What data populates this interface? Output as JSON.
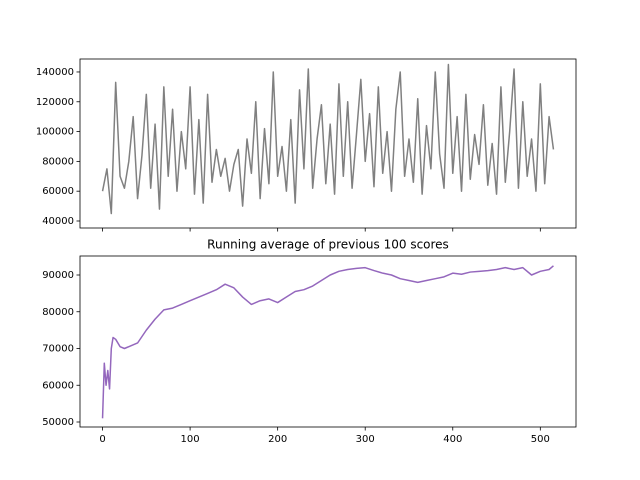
{
  "chart_data": [
    {
      "type": "line",
      "x": [
        0,
        5,
        10,
        15,
        20,
        25,
        30,
        35,
        40,
        45,
        50,
        55,
        60,
        65,
        70,
        75,
        80,
        85,
        90,
        95,
        100,
        105,
        110,
        115,
        120,
        125,
        130,
        135,
        140,
        145,
        150,
        155,
        160,
        165,
        170,
        175,
        180,
        185,
        190,
        195,
        200,
        205,
        210,
        215,
        220,
        225,
        230,
        235,
        240,
        245,
        250,
        255,
        260,
        265,
        270,
        275,
        280,
        285,
        290,
        295,
        300,
        305,
        310,
        315,
        320,
        325,
        330,
        335,
        340,
        345,
        350,
        355,
        360,
        365,
        370,
        375,
        380,
        385,
        390,
        395,
        400,
        405,
        410,
        415,
        420,
        425,
        430,
        435,
        440,
        445,
        450,
        455,
        460,
        465,
        470,
        475,
        480,
        485,
        490,
        495,
        500,
        505,
        510,
        515
      ],
      "series": [
        {
          "color": "#808080",
          "values": [
            60000,
            75000,
            45000,
            133000,
            70000,
            62000,
            80000,
            110000,
            55000,
            84000,
            125000,
            62000,
            105000,
            48000,
            130000,
            70000,
            115000,
            60000,
            100000,
            75000,
            130000,
            58000,
            108000,
            52000,
            125000,
            66000,
            88000,
            70000,
            82000,
            60000,
            78000,
            88000,
            50000,
            95000,
            72000,
            120000,
            55000,
            102000,
            65000,
            140000,
            70000,
            90000,
            60000,
            108000,
            52000,
            128000,
            75000,
            142000,
            62000,
            95000,
            118000,
            65000,
            105000,
            58000,
            132000,
            70000,
            120000,
            62000,
            98000,
            135000,
            80000,
            112000,
            63000,
            130000,
            72000,
            100000,
            60000,
            115000,
            140000,
            70000,
            95000,
            66000,
            122000,
            58000,
            104000,
            75000,
            140000,
            85000,
            62000,
            145000,
            72000,
            110000,
            60000,
            125000,
            68000,
            98000,
            78000,
            118000,
            64000,
            92000,
            58000,
            130000,
            66000,
            100000,
            142000,
            62000,
            120000,
            70000,
            95000,
            60000,
            132000,
            65000,
            110000,
            88000
          ]
        }
      ],
      "xlim": [
        -25.75,
        540.75
      ],
      "xticks": [
        0,
        100,
        200,
        300,
        400,
        500
      ],
      "ylim": [
        35300,
        148700
      ],
      "yticks": [
        40000,
        60000,
        80000,
        100000,
        120000,
        140000
      ]
    },
    {
      "type": "line",
      "title": "Running average of previous 100 scores",
      "x": [
        0,
        2,
        4,
        6,
        8,
        10,
        12,
        15,
        20,
        25,
        30,
        40,
        50,
        60,
        70,
        80,
        90,
        100,
        110,
        120,
        130,
        140,
        150,
        160,
        170,
        180,
        190,
        200,
        210,
        220,
        230,
        240,
        250,
        260,
        270,
        280,
        290,
        300,
        310,
        320,
        330,
        340,
        350,
        360,
        370,
        380,
        390,
        400,
        410,
        420,
        430,
        440,
        450,
        460,
        470,
        480,
        490,
        500,
        510,
        515
      ],
      "series": [
        {
          "color": "#9467bd",
          "values": [
            51000,
            66000,
            60000,
            64000,
            59000,
            70000,
            73000,
            72500,
            70500,
            70000,
            70500,
            71500,
            75000,
            78000,
            80500,
            81000,
            82000,
            83000,
            84000,
            85000,
            86000,
            87500,
            86500,
            84000,
            82000,
            83000,
            83500,
            82500,
            84000,
            85500,
            86000,
            87000,
            88500,
            90000,
            91000,
            91500,
            91800,
            92000,
            91200,
            90500,
            90000,
            89000,
            88500,
            88000,
            88500,
            89000,
            89500,
            90500,
            90200,
            90800,
            91000,
            91200,
            91500,
            92000,
            91500,
            92000,
            90000,
            91000,
            91500,
            92500
          ]
        }
      ],
      "xlim": [
        -25.75,
        540.75
      ],
      "xticks": [
        0,
        100,
        200,
        300,
        400,
        500
      ],
      "ylim": [
        48640,
        95170
      ],
      "yticks": [
        50000,
        60000,
        70000,
        80000,
        90000
      ]
    }
  ]
}
